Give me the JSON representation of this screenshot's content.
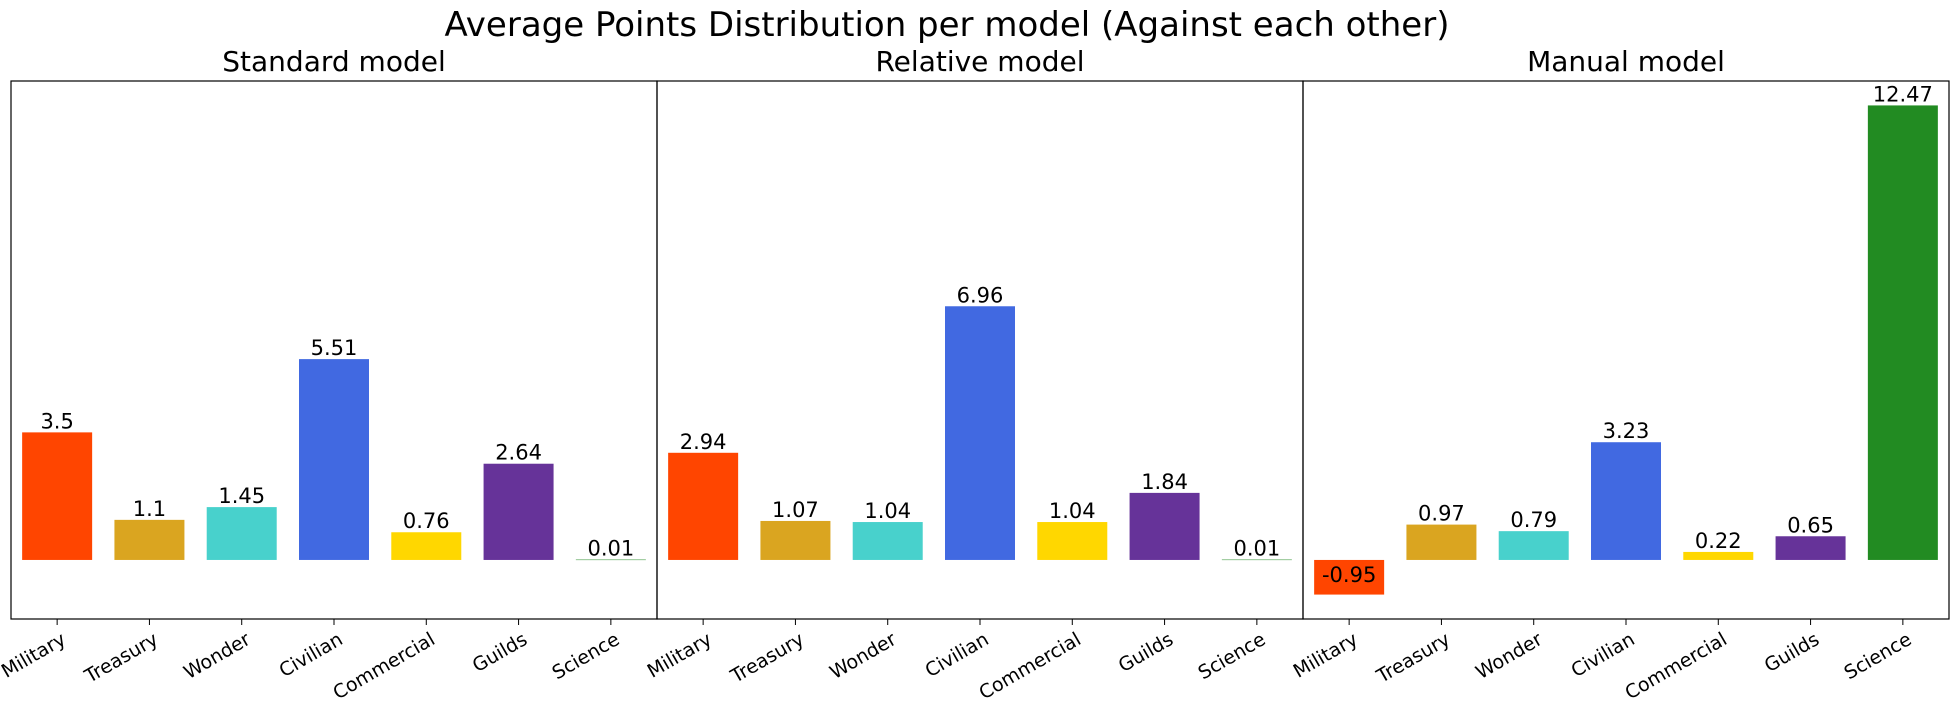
{
  "figure": {
    "title": "Average Points Distribution per model (Against each other)"
  },
  "chart_data": [
    {
      "type": "bar",
      "title": "Standard model",
      "categories": [
        "Military",
        "Treasury",
        "Wonder",
        "Civilian",
        "Commercial",
        "Guilds",
        "Science"
      ],
      "values": [
        3.5,
        1.1,
        1.45,
        5.51,
        0.76,
        2.64,
        0.01
      ],
      "value_labels": [
        "3.5",
        "1.1",
        "1.45",
        "5.51",
        "0.76",
        "2.64",
        "0.01"
      ],
      "colors": [
        "#ff4500",
        "#daa520",
        "#48d1cc",
        "#4169e1",
        "#ffd700",
        "#663399",
        "#228b22"
      ],
      "xlabel": "",
      "ylabel": "",
      "ylim": [
        -1.62,
        13.14
      ],
      "grid": false,
      "y_ticks_visible": false
    },
    {
      "type": "bar",
      "title": "Relative model",
      "categories": [
        "Military",
        "Treasury",
        "Wonder",
        "Civilian",
        "Commercial",
        "Guilds",
        "Science"
      ],
      "values": [
        2.94,
        1.07,
        1.04,
        6.96,
        1.04,
        1.84,
        0.01
      ],
      "value_labels": [
        "2.94",
        "1.07",
        "1.04",
        "6.96",
        "1.04",
        "1.84",
        "0.01"
      ],
      "colors": [
        "#ff4500",
        "#daa520",
        "#48d1cc",
        "#4169e1",
        "#ffd700",
        "#663399",
        "#228b22"
      ],
      "xlabel": "",
      "ylabel": "",
      "ylim": [
        -1.62,
        13.14
      ],
      "grid": false,
      "y_ticks_visible": false
    },
    {
      "type": "bar",
      "title": "Manual model",
      "categories": [
        "Military",
        "Treasury",
        "Wonder",
        "Civilian",
        "Commercial",
        "Guilds",
        "Science"
      ],
      "values": [
        -0.95,
        0.97,
        0.79,
        3.23,
        0.22,
        0.65,
        12.47
      ],
      "value_labels": [
        "-0.95",
        "0.97",
        "0.79",
        "3.23",
        "0.22",
        "0.65",
        "12.47"
      ],
      "colors": [
        "#ff4500",
        "#daa520",
        "#48d1cc",
        "#4169e1",
        "#ffd700",
        "#663399",
        "#228b22"
      ],
      "xlabel": "",
      "ylabel": "",
      "ylim": [
        -1.62,
        13.14
      ],
      "grid": false,
      "y_ticks_visible": false
    }
  ]
}
